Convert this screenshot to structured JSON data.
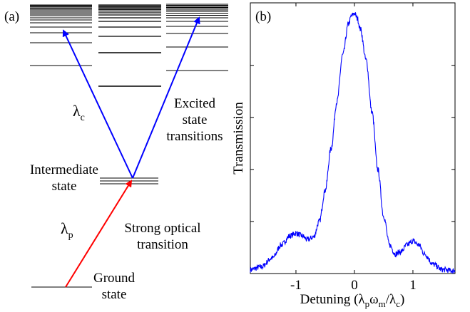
{
  "panel_a": {
    "label": "(a)",
    "lambda_c": {
      "base": "λ",
      "sub": "c"
    },
    "lambda_p": {
      "base": "λ",
      "sub": "p"
    },
    "excited_text": [
      "Excited",
      "state",
      "transitions"
    ],
    "intermediate_text": [
      "Intermediate",
      "state"
    ],
    "strong_text": [
      "Strong optical",
      "transition"
    ],
    "ground_text": [
      "Ground",
      "state"
    ],
    "colors": {
      "probe": "#ff0000",
      "coupling": "#0000ff",
      "levels": "#000000"
    }
  },
  "panel_b": {
    "label": "(b)",
    "ylabel": "Transmission",
    "xlabel": {
      "prefix": "Detuning (",
      "l1": "λ",
      "s1": "p",
      "w": "ω",
      "s2": "m",
      "slash": "/",
      "l2": "λ",
      "s3": "c",
      "suffix": ")"
    }
  },
  "chart_data": {
    "type": "line",
    "title": "",
    "xlabel": "Detuning (λpωm/λc)",
    "ylabel": "Transmission",
    "xlim": [
      -1.78,
      1.72
    ],
    "ylim": [
      0.0,
      1.04
    ],
    "xticks": [
      -1,
      0,
      1
    ],
    "xtick_labels": [
      "-1",
      "0",
      "1"
    ],
    "yticks": [
      0.2,
      0.4,
      0.6,
      0.8
    ],
    "ytick_labels": [
      "",
      "",
      "",
      ""
    ],
    "grid": false,
    "legend": "none",
    "color": "#0000ff",
    "series": [
      {
        "x": [
          -1.78,
          -1.6,
          -1.4,
          -1.25,
          -1.1,
          -1.0,
          -0.9,
          -0.8,
          -0.7,
          -0.6,
          -0.5,
          -0.4,
          -0.3,
          -0.2,
          -0.1,
          -0.05,
          0.0,
          0.05,
          0.1,
          0.2,
          0.3,
          0.4,
          0.5,
          0.6,
          0.7,
          0.8,
          0.9,
          1.0,
          1.1,
          1.2,
          1.35,
          1.5,
          1.72
        ],
        "y": [
          0.015,
          0.025,
          0.06,
          0.11,
          0.145,
          0.155,
          0.145,
          0.13,
          0.14,
          0.2,
          0.32,
          0.48,
          0.66,
          0.84,
          0.96,
          0.99,
          1.0,
          0.98,
          0.94,
          0.82,
          0.62,
          0.4,
          0.22,
          0.11,
          0.075,
          0.085,
          0.11,
          0.125,
          0.11,
          0.075,
          0.035,
          0.015,
          0.01
        ]
      }
    ]
  }
}
